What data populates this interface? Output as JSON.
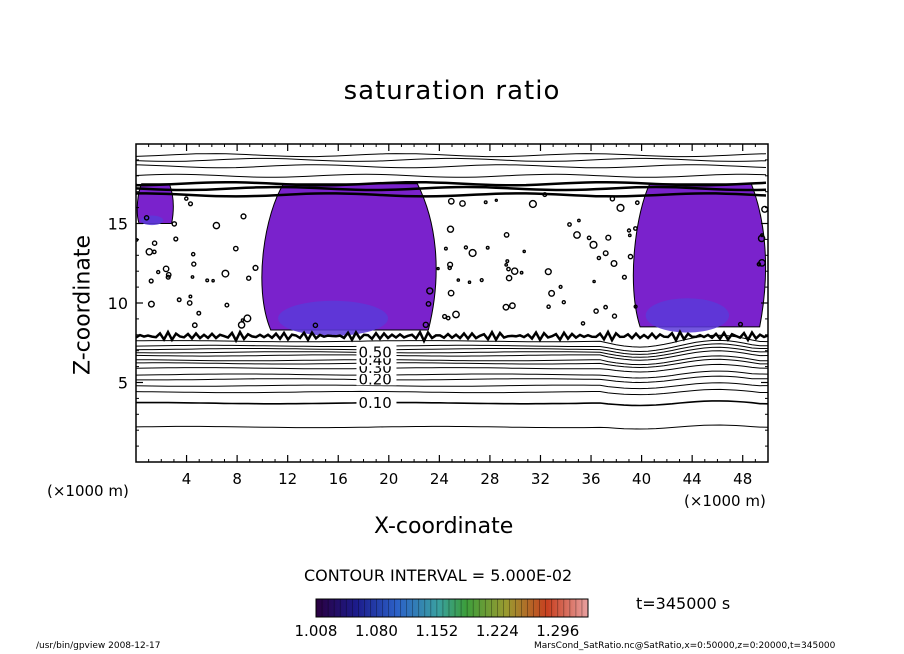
{
  "chart_data": {
    "type": "contour",
    "title": "saturation ratio",
    "xlabel": "X-coordinate",
    "ylabel": "Z-coordinate",
    "x_unit_label": "(×1000 m)",
    "xlim": [
      0,
      50
    ],
    "ylim": [
      0,
      20
    ],
    "x_ticks": [
      4,
      8,
      12,
      16,
      20,
      24,
      28,
      32,
      36,
      40,
      44,
      48
    ],
    "y_ticks": [
      5,
      10,
      15
    ],
    "contour_interval_text": "CONTOUR INTERVAL = 5.000E-02",
    "contour_labels": [
      {
        "text": "0.10",
        "x": 17.6,
        "z": 3.7
      },
      {
        "text": "0.20",
        "x": 17.6,
        "z": 5.2
      },
      {
        "text": "0.30",
        "x": 17.6,
        "z": 5.9
      },
      {
        "text": "0.40",
        "x": 17.6,
        "z": 6.4
      },
      {
        "text": "0.50",
        "x": 17.6,
        "z": 6.9
      }
    ],
    "contour_lines_z": [
      2.2,
      3.7,
      4.4,
      4.8,
      5.2,
      5.5,
      5.9,
      6.2,
      6.4,
      6.7,
      6.9,
      7.1,
      7.3,
      7.6
    ],
    "upper_contour_lines_z": [
      16.8,
      17.2,
      17.5,
      18.0,
      18.6,
      19.0,
      19.3
    ],
    "shaded_regions": [
      {
        "x_min": 9.5,
        "x_max": 24.0,
        "z_min": 8.3,
        "z_max": 17.5,
        "value": 1.03
      },
      {
        "x_min": 39.0,
        "x_max": 50.0,
        "z_min": 8.5,
        "z_max": 17.5,
        "value": 1.03
      },
      {
        "x_min": 0.0,
        "x_max": 3.0,
        "z_min": 15.0,
        "z_max": 17.5,
        "value": 1.02
      }
    ],
    "colorbar": {
      "min": 1.008,
      "max": 1.332,
      "tick_labels": [
        "1.008",
        "1.080",
        "1.152",
        "1.224",
        "1.296"
      ]
    },
    "time_label": "t=345000 s"
  },
  "footer": {
    "left": "/usr/bin/gpview  2008-12-17",
    "right": "MarsCond_SatRatio.nc@SatRatio,x=0:50000,z=0:20000,t=345000"
  }
}
